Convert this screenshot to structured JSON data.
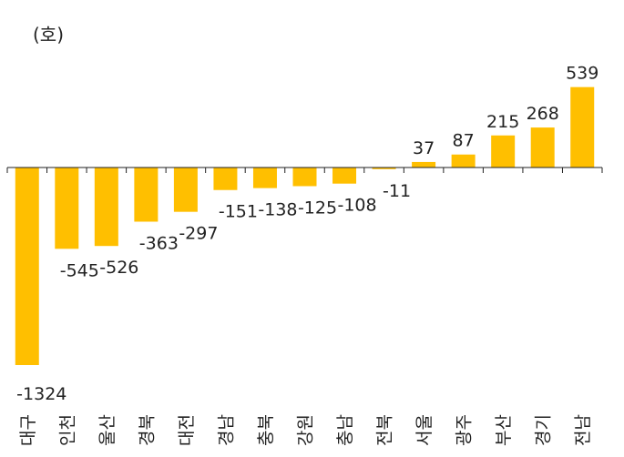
{
  "chart_data": {
    "type": "bar",
    "unit": "(호)",
    "categories": [
      "대구",
      "인천",
      "울산",
      "경북",
      "대전",
      "경남",
      "충북",
      "강원",
      "충남",
      "전북",
      "서울",
      "광주",
      "부산",
      "경기",
      "전남"
    ],
    "values": [
      -1324,
      -545,
      -526,
      -363,
      -297,
      -151,
      -138,
      -125,
      -108,
      -11,
      37,
      87,
      215,
      268,
      539
    ],
    "value_labels": [
      "-1324",
      "-545",
      "-526",
      "-363",
      "-297",
      "-151",
      "-138",
      "-125",
      "-108",
      "-11",
      "37",
      "87",
      "215",
      "268",
      "539"
    ],
    "ylim": [
      -1324,
      539
    ],
    "bar_color": "#FFBF00",
    "axis_color": "#222222",
    "title": "",
    "xlabel": "",
    "ylabel": "",
    "grid": false,
    "legend": "none"
  }
}
